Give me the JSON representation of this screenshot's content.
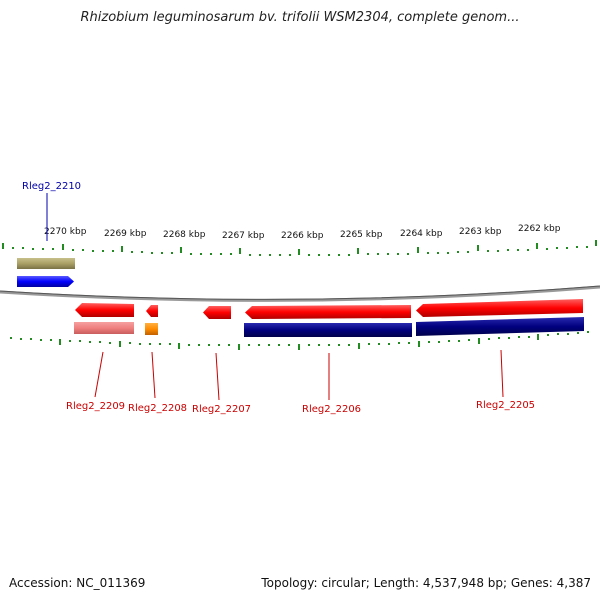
{
  "title": "Rhizobium leguminosarum bv. trifolii WSM2304, complete genom...",
  "footer": {
    "accession": "Accession: NC_011369",
    "info": "Topology: circular; Length: 4,537,948 bp; Genes: 4,387"
  },
  "scale_labels": [
    "2270 kbp",
    "2269 kbp",
    "2268 kbp",
    "2267 kbp",
    "2266 kbp",
    "2265 kbp",
    "2264 kbp",
    "2263 kbp",
    "2262 kbp"
  ],
  "gene_labels": {
    "top": [
      "Rleg2_2210"
    ],
    "bottom": [
      "Rleg2_2209",
      "Rleg2_2208",
      "Rleg2_2207",
      "Rleg2_2206",
      "Rleg2_2205"
    ]
  },
  "colors": {
    "forward_gene": "#0000ff",
    "forward_gene_bar": "#aaa066",
    "reverse_gene": "#ff0000",
    "reverse_gene_bar_dark": "#000080",
    "reverse_gene_bar_light": "#f08080",
    "reverse_gene_bar_orange": "#ff8c00",
    "tick": "#228b22",
    "backbone": "#999999",
    "label_blue": "#0000aa",
    "label_red": "#cc0000"
  }
}
